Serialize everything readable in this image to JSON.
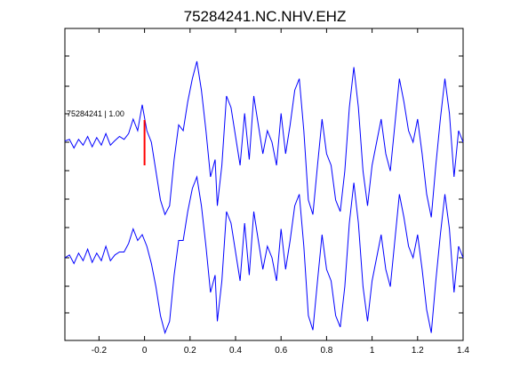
{
  "chart_data": {
    "type": "line",
    "title": "75284241.NC.NHV.EHZ",
    "xlabel": "",
    "ylabel": "",
    "xlim": [
      -0.35,
      1.4
    ],
    "x_ticks": [
      -0.2,
      0,
      0.2,
      0.4,
      0.6,
      0.8,
      1,
      1.2,
      1.4
    ],
    "x_tick_labels": [
      "-0.2",
      "0",
      "0.2",
      "0.4",
      "0.6",
      "0.8",
      "1",
      "1.2",
      "1.4"
    ],
    "grid": false,
    "line_color": "#0000ff",
    "pick": {
      "x": 0.0,
      "color": "#ff0000",
      "label": "75284241 | 1.00"
    },
    "series": [
      {
        "points": [
          [
            -0.35,
            0.02
          ],
          [
            -0.33,
            0.05
          ],
          [
            -0.31,
            -0.1
          ],
          [
            -0.29,
            0.05
          ],
          [
            -0.27,
            -0.05
          ],
          [
            -0.25,
            0.1
          ],
          [
            -0.23,
            -0.08
          ],
          [
            -0.21,
            0.08
          ],
          [
            -0.19,
            -0.05
          ],
          [
            -0.17,
            0.15
          ],
          [
            -0.15,
            -0.05
          ],
          [
            -0.13,
            0.03
          ],
          [
            -0.11,
            0.1
          ],
          [
            -0.09,
            0.05
          ],
          [
            -0.07,
            0.15
          ],
          [
            -0.05,
            0.4
          ],
          [
            -0.03,
            0.2
          ],
          [
            -0.01,
            0.65
          ],
          [
            0.01,
            0.2
          ],
          [
            0.03,
            0.0
          ],
          [
            0.05,
            -0.5
          ],
          [
            0.07,
            -1.0
          ],
          [
            0.09,
            -1.25
          ],
          [
            0.11,
            -1.1
          ],
          [
            0.13,
            -0.3
          ],
          [
            0.15,
            0.3
          ],
          [
            0.17,
            0.2
          ],
          [
            0.19,
            0.7
          ],
          [
            0.21,
            1.1
          ],
          [
            0.23,
            1.4
          ],
          [
            0.25,
            0.9
          ],
          [
            0.27,
            0.2
          ],
          [
            0.29,
            -0.6
          ],
          [
            0.31,
            -0.3
          ],
          [
            0.32,
            -1.1
          ],
          [
            0.34,
            -0.4
          ],
          [
            0.36,
            0.8
          ],
          [
            0.38,
            0.6
          ],
          [
            0.4,
            0.1
          ],
          [
            0.42,
            -0.4
          ],
          [
            0.44,
            0.5
          ],
          [
            0.46,
            -0.3
          ],
          [
            0.48,
            0.8
          ],
          [
            0.5,
            0.3
          ],
          [
            0.52,
            -0.2
          ],
          [
            0.54,
            0.2
          ],
          [
            0.56,
            0.0
          ],
          [
            0.58,
            -0.4
          ],
          [
            0.6,
            0.5
          ],
          [
            0.62,
            -0.2
          ],
          [
            0.64,
            0.3
          ],
          [
            0.66,
            0.9
          ],
          [
            0.68,
            1.1
          ],
          [
            0.7,
            0.2
          ],
          [
            0.72,
            -1.0
          ],
          [
            0.74,
            -1.25
          ],
          [
            0.76,
            -0.4
          ],
          [
            0.78,
            0.4
          ],
          [
            0.8,
            -0.2
          ],
          [
            0.82,
            -0.4
          ],
          [
            0.84,
            -1.0
          ],
          [
            0.86,
            -1.2
          ],
          [
            0.88,
            -0.5
          ],
          [
            0.9,
            0.6
          ],
          [
            0.92,
            1.3
          ],
          [
            0.94,
            0.6
          ],
          [
            0.96,
            -0.5
          ],
          [
            0.98,
            -1.1
          ],
          [
            1.0,
            -0.4
          ],
          [
            1.02,
            0.0
          ],
          [
            1.04,
            0.4
          ],
          [
            1.06,
            -0.2
          ],
          [
            1.08,
            -0.5
          ],
          [
            1.1,
            0.3
          ],
          [
            1.12,
            1.1
          ],
          [
            1.14,
            0.7
          ],
          [
            1.16,
            0.2
          ],
          [
            1.18,
            0.0
          ],
          [
            1.2,
            0.4
          ],
          [
            1.22,
            -0.2
          ],
          [
            1.24,
            -0.9
          ],
          [
            1.26,
            -1.3
          ],
          [
            1.28,
            -0.4
          ],
          [
            1.3,
            0.4
          ],
          [
            1.32,
            1.1
          ],
          [
            1.34,
            0.5
          ],
          [
            1.36,
            -0.6
          ],
          [
            1.38,
            0.2
          ],
          [
            1.4,
            0.0
          ]
        ]
      },
      {
        "points": [
          [
            -0.35,
            0.0
          ],
          [
            -0.33,
            0.05
          ],
          [
            -0.31,
            -0.1
          ],
          [
            -0.29,
            0.08
          ],
          [
            -0.27,
            -0.05
          ],
          [
            -0.25,
            0.15
          ],
          [
            -0.23,
            -0.08
          ],
          [
            -0.21,
            0.08
          ],
          [
            -0.19,
            -0.05
          ],
          [
            -0.17,
            0.2
          ],
          [
            -0.15,
            -0.05
          ],
          [
            -0.13,
            0.05
          ],
          [
            -0.11,
            0.1
          ],
          [
            -0.09,
            0.1
          ],
          [
            -0.07,
            0.25
          ],
          [
            -0.05,
            0.5
          ],
          [
            -0.03,
            0.3
          ],
          [
            -0.01,
            0.4
          ],
          [
            0.01,
            0.2
          ],
          [
            0.03,
            -0.1
          ],
          [
            0.05,
            -0.5
          ],
          [
            0.07,
            -1.0
          ],
          [
            0.09,
            -1.3
          ],
          [
            0.11,
            -1.1
          ],
          [
            0.13,
            -0.3
          ],
          [
            0.15,
            0.3
          ],
          [
            0.17,
            0.3
          ],
          [
            0.19,
            0.8
          ],
          [
            0.21,
            1.2
          ],
          [
            0.23,
            1.4
          ],
          [
            0.25,
            0.9
          ],
          [
            0.27,
            0.2
          ],
          [
            0.29,
            -0.6
          ],
          [
            0.31,
            -0.3
          ],
          [
            0.32,
            -1.1
          ],
          [
            0.34,
            -0.4
          ],
          [
            0.36,
            0.8
          ],
          [
            0.38,
            0.6
          ],
          [
            0.4,
            0.1
          ],
          [
            0.42,
            -0.4
          ],
          [
            0.44,
            0.6
          ],
          [
            0.46,
            -0.3
          ],
          [
            0.48,
            0.8
          ],
          [
            0.5,
            0.3
          ],
          [
            0.52,
            -0.2
          ],
          [
            0.54,
            0.2
          ],
          [
            0.56,
            0.0
          ],
          [
            0.58,
            -0.4
          ],
          [
            0.6,
            0.5
          ],
          [
            0.62,
            -0.2
          ],
          [
            0.64,
            0.3
          ],
          [
            0.66,
            0.9
          ],
          [
            0.68,
            1.1
          ],
          [
            0.7,
            0.2
          ],
          [
            0.72,
            -1.0
          ],
          [
            0.74,
            -1.25
          ],
          [
            0.76,
            -0.4
          ],
          [
            0.78,
            0.4
          ],
          [
            0.8,
            -0.2
          ],
          [
            0.82,
            -0.4
          ],
          [
            0.84,
            -1.0
          ],
          [
            0.86,
            -1.2
          ],
          [
            0.88,
            -0.5
          ],
          [
            0.9,
            0.6
          ],
          [
            0.92,
            1.3
          ],
          [
            0.94,
            0.6
          ],
          [
            0.96,
            -0.5
          ],
          [
            0.98,
            -1.1
          ],
          [
            1.0,
            -0.4
          ],
          [
            1.02,
            0.0
          ],
          [
            1.04,
            0.4
          ],
          [
            1.06,
            -0.2
          ],
          [
            1.08,
            -0.5
          ],
          [
            1.1,
            0.3
          ],
          [
            1.12,
            1.1
          ],
          [
            1.14,
            0.7
          ],
          [
            1.16,
            0.2
          ],
          [
            1.18,
            0.0
          ],
          [
            1.2,
            0.4
          ],
          [
            1.22,
            -0.2
          ],
          [
            1.24,
            -0.9
          ],
          [
            1.26,
            -1.3
          ],
          [
            1.28,
            -0.4
          ],
          [
            1.3,
            0.4
          ],
          [
            1.32,
            1.1
          ],
          [
            1.34,
            0.5
          ],
          [
            1.36,
            -0.6
          ],
          [
            1.38,
            0.2
          ],
          [
            1.4,
            0.0
          ]
        ]
      }
    ]
  }
}
